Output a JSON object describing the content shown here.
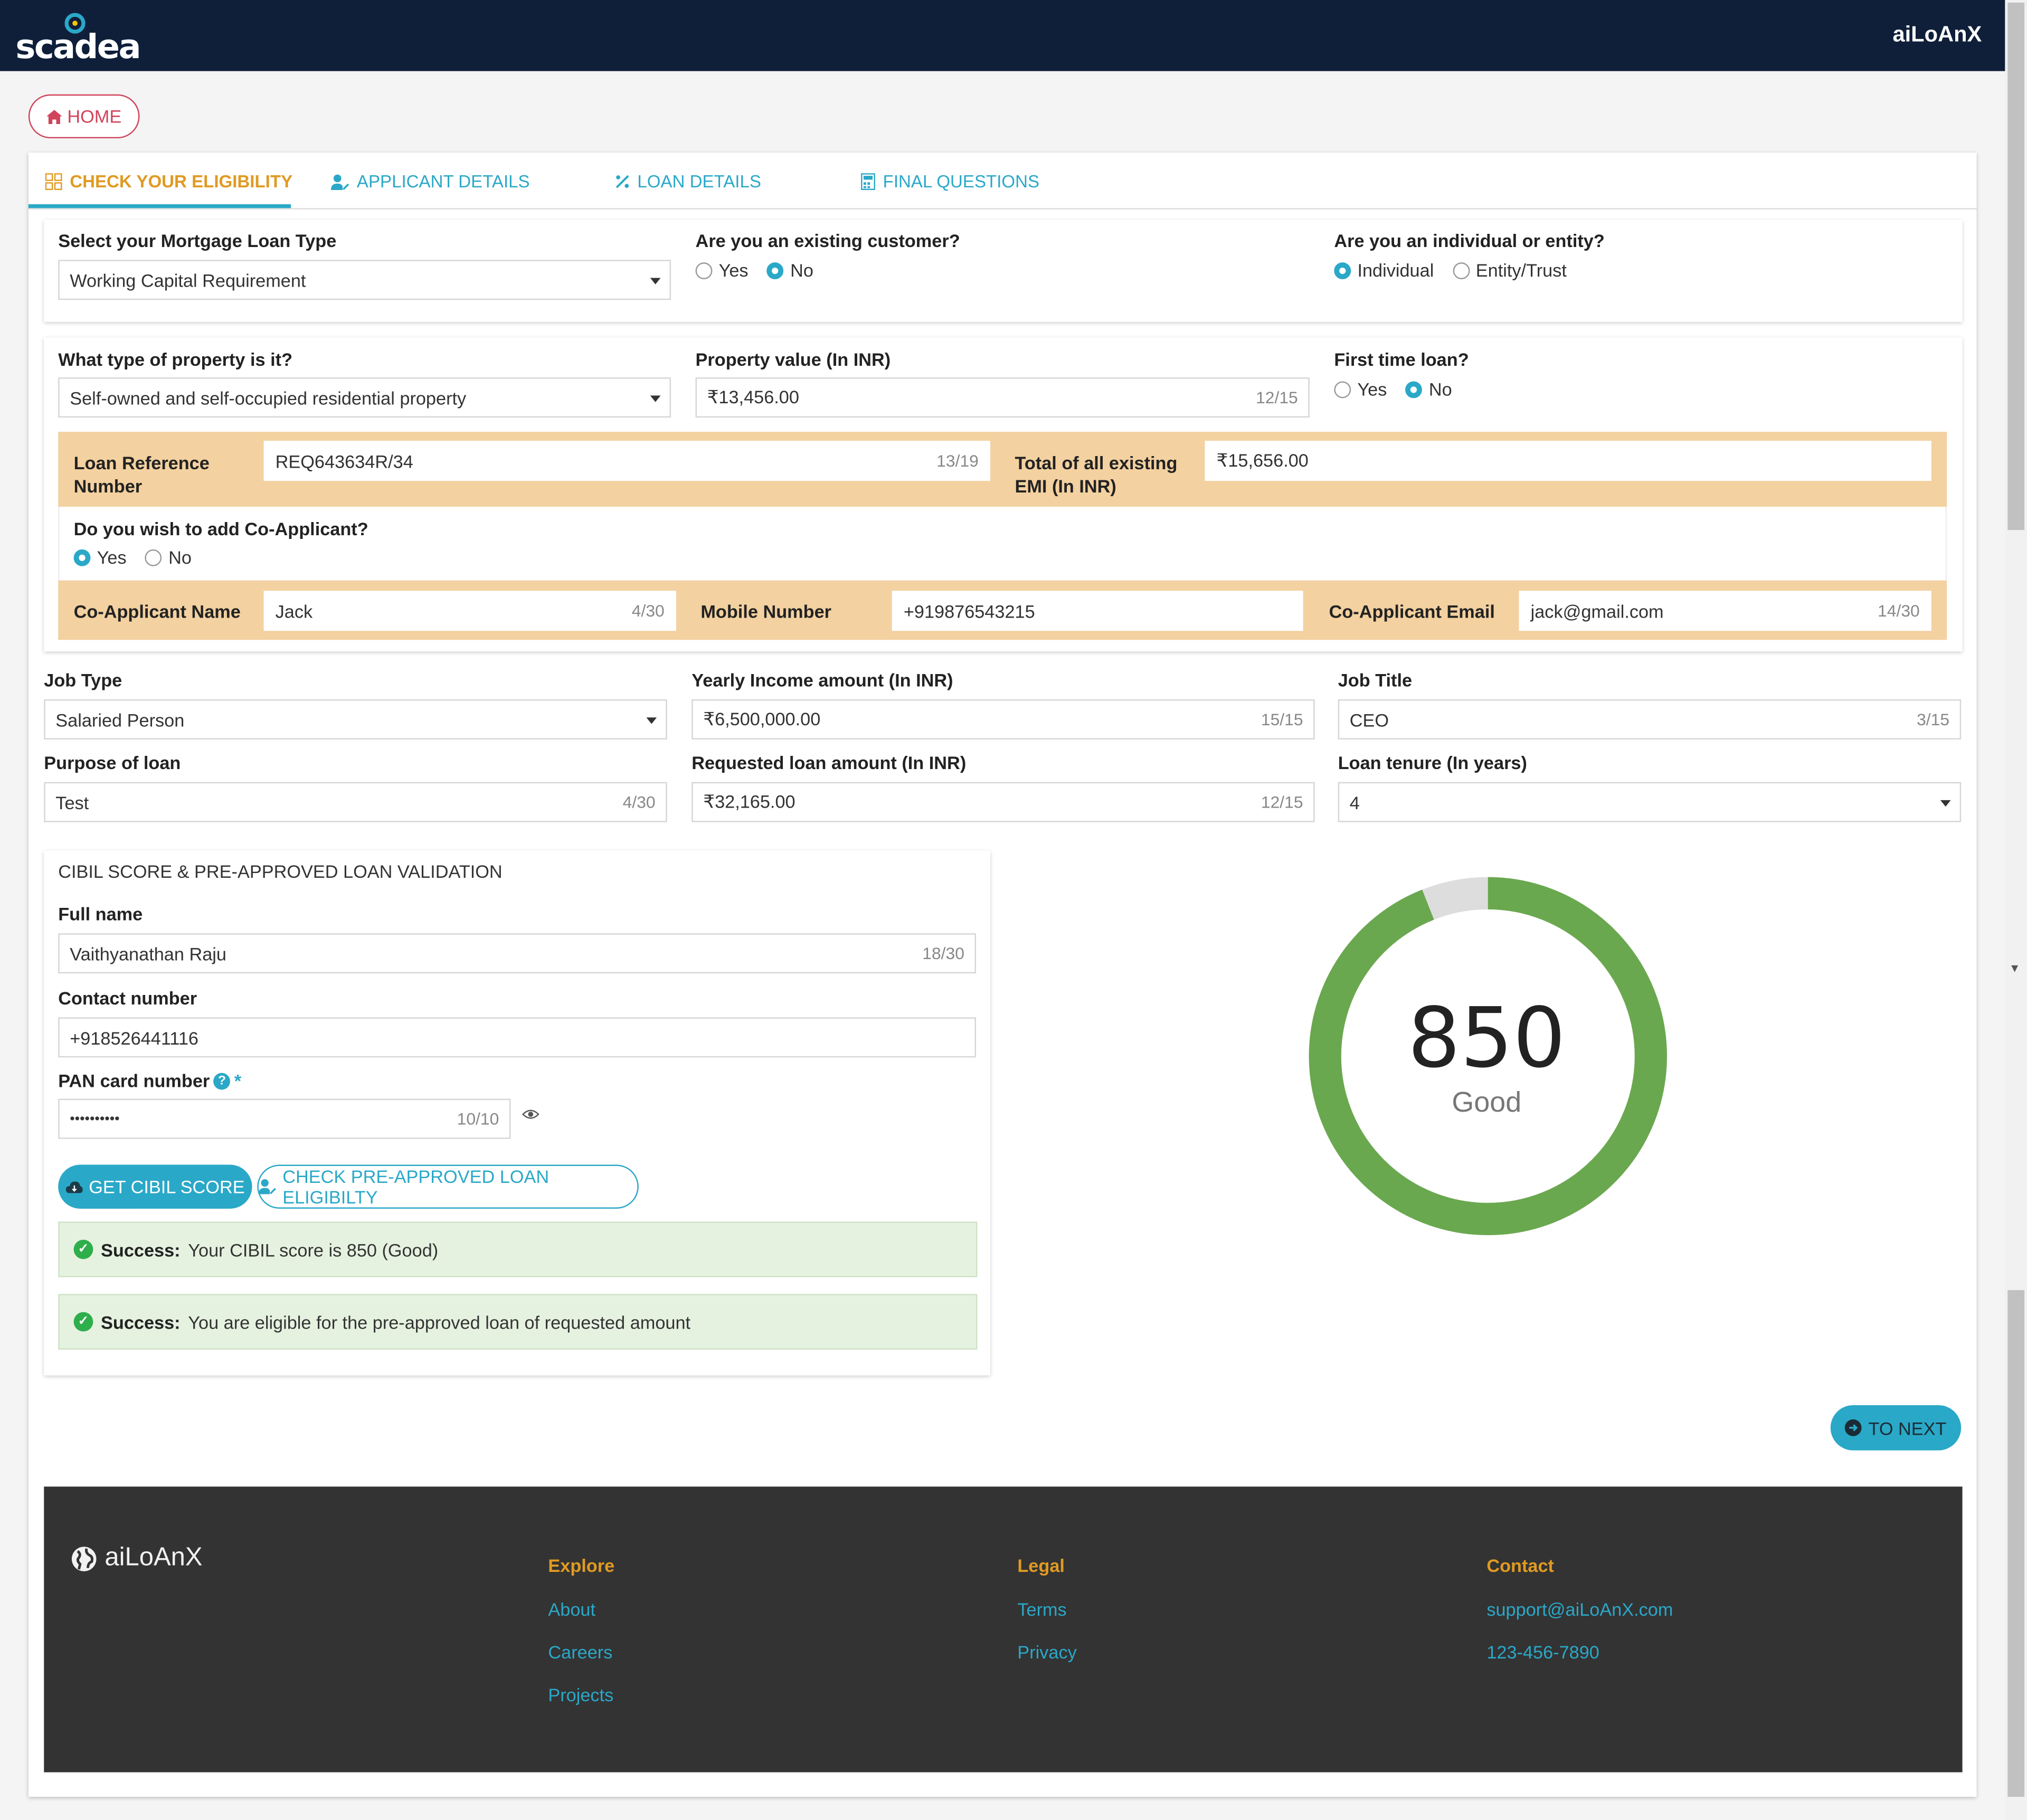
{
  "header": {
    "logo_text": "scadea",
    "brand": "aiLoAnX"
  },
  "nav": {
    "home_label": "HOME"
  },
  "tabs": [
    {
      "label": "CHECK YOUR ELIGIBILITY",
      "icon": "grid-icon",
      "active": true
    },
    {
      "label": "APPLICANT DETAILS",
      "icon": "user-edit-icon",
      "active": false
    },
    {
      "label": "LOAN DETAILS",
      "icon": "percent-icon",
      "active": false
    },
    {
      "label": "FINAL QUESTIONS",
      "icon": "calculator-icon",
      "active": false
    }
  ],
  "section1": {
    "loan_type_label": "Select your Mortgage Loan Type",
    "loan_type_value": "Working Capital Requirement",
    "existing_customer_label": "Are you an existing customer?",
    "existing_customer_options": [
      "Yes",
      "No"
    ],
    "existing_customer_selected": "No",
    "individual_label": "Are you an individual or entity?",
    "individual_options": [
      "Individual",
      "Entity/Trust"
    ],
    "individual_selected": "Individual"
  },
  "section2": {
    "property_type_label": "What type of property is it?",
    "property_type_value": "Self-owned and self-occupied residential property",
    "property_value_label": "Property value (In INR)",
    "property_value": "₹13,456.00",
    "property_value_counter": "12/15",
    "first_time_label": "First time loan?",
    "first_time_options": [
      "Yes",
      "No"
    ],
    "first_time_selected": "No",
    "loan_ref_label": "Loan Reference Number",
    "loan_ref_value": "REQ643634R/34",
    "loan_ref_counter": "13/19",
    "emi_label": "Total of all existing EMI (In INR)",
    "emi_value": "₹15,656.00",
    "coapp_question": "Do you wish to add Co-Applicant?",
    "coapp_options": [
      "Yes",
      "No"
    ],
    "coapp_selected": "Yes",
    "coapp_name_label": "Co-Applicant Name",
    "coapp_name_value": "Jack",
    "coapp_name_counter": "4/30",
    "mobile_label": "Mobile Number",
    "mobile_value": "+919876543215",
    "coapp_email_label": "Co-Applicant Email",
    "coapp_email_value": "jack@gmail.com",
    "coapp_email_counter": "14/30"
  },
  "section3": {
    "job_type_label": "Job Type",
    "job_type_value": "Salaried Person",
    "income_label": "Yearly Income amount (In INR)",
    "income_value": "₹6,500,000.00",
    "income_counter": "15/15",
    "job_title_label": "Job Title",
    "job_title_value": "CEO",
    "job_title_counter": "3/15",
    "purpose_label": "Purpose of loan",
    "purpose_value": "Test",
    "purpose_counter": "4/30",
    "requested_label": "Requested loan amount (In INR)",
    "requested_value": "₹32,165.00",
    "requested_counter": "12/15",
    "tenure_label": "Loan tenure (In years)",
    "tenure_value": "4"
  },
  "cibil": {
    "title": "CIBIL SCORE & PRE-APPROVED LOAN VALIDATION",
    "fullname_label": "Full name",
    "fullname_value": "Vaithyanathan Raju",
    "fullname_counter": "18/30",
    "contact_label": "Contact number",
    "contact_value": "+918526441116",
    "pan_label": "PAN card number",
    "pan_required": "*",
    "pan_value": "••••••••••",
    "pan_counter": "10/10",
    "get_score_btn": "GET CIBIL SCORE",
    "check_eligibility_btn": "CHECK PRE-APPROVED LOAN ELIGIBILTY",
    "alert1_strong": "Success:",
    "alert1_text": "Your CIBIL score is 850 (Good)",
    "alert2_strong": "Success:",
    "alert2_text": "You are eligible for the pre-approved loan of requested amount"
  },
  "gauge": {
    "score": "850",
    "rating": "Good",
    "fraction": 0.94,
    "color_fill": "#6aa84f",
    "color_rest": "#dddddd"
  },
  "next_btn": "TO NEXT",
  "footer": {
    "brand": "aiLoAnX",
    "explore_head": "Explore",
    "explore_links": [
      "About",
      "Careers",
      "Projects"
    ],
    "legal_head": "Legal",
    "legal_links": [
      "Terms",
      "Privacy"
    ],
    "contact_head": "Contact",
    "contact_email": "support@aiLoAnX.com",
    "contact_phone": "123-456-7890"
  },
  "colors": {
    "header_bg": "#0f1f3a",
    "accent": "#2aa8c8",
    "active_tab": "#e09a22",
    "highlight_bg": "#f3d1a0",
    "footer_bg": "#333333",
    "home": "#d0445c"
  }
}
